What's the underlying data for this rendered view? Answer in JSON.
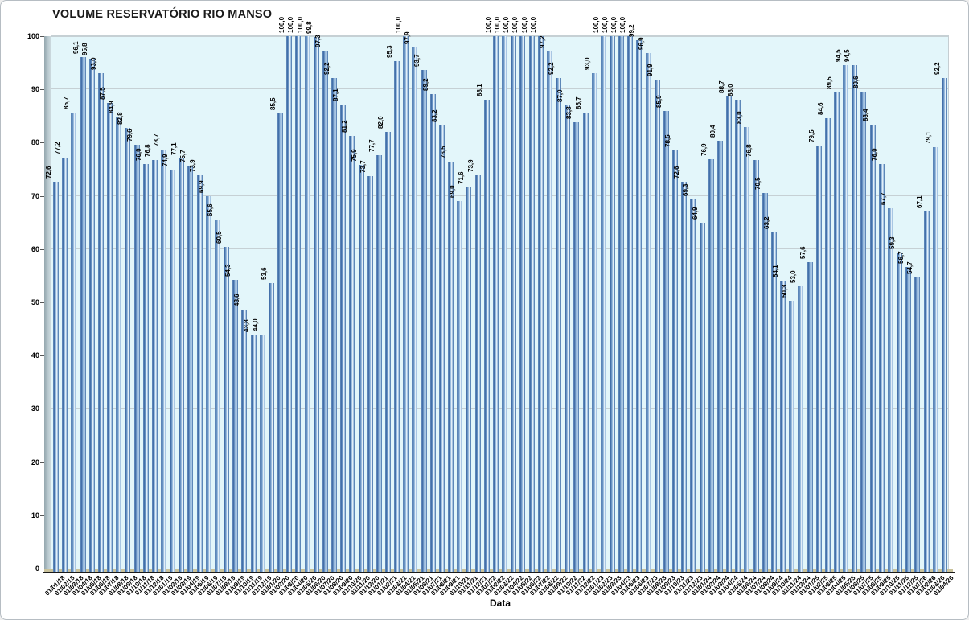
{
  "chart_data": {
    "type": "bar",
    "title": "VOLUME RESERVATÓRIO RIO MANSO",
    "xlabel": "Data",
    "ylabel": "",
    "ylim": [
      0,
      100
    ],
    "y_ticks": [
      0,
      10,
      20,
      30,
      40,
      50,
      60,
      70,
      80,
      90,
      100
    ],
    "grid": true,
    "legend": false,
    "decimal_separator": ",",
    "colors": {
      "plot_background": "#e3f6fa",
      "bar_main": "#4a77b0",
      "bar_highlight": "#f0f7fc",
      "gridline": "#c6d0d4",
      "floor": "#c9c29b",
      "axis_line": "#1b1b1b"
    },
    "categories": [
      "01/01/18",
      "01/02/18",
      "01/03/18",
      "01/04/18",
      "01/05/18",
      "01/06/18",
      "01/07/18",
      "01/08/18",
      "01/09/18",
      "01/10/18",
      "01/11/18",
      "01/12/18",
      "01/01/19",
      "01/02/19",
      "01/03/19",
      "01/04/19",
      "01/05/19",
      "01/06/19",
      "01/07/19",
      "01/08/19",
      "01/09/19",
      "01/10/19",
      "01/11/19",
      "01/12/19",
      "01/01/20",
      "01/02/20",
      "01/03/20",
      "01/04/20",
      "01/05/20",
      "01/06/20",
      "01/07/20",
      "01/08/20",
      "01/09/20",
      "01/10/20",
      "01/11/20",
      "01/12/20",
      "01/01/21",
      "01/02/21",
      "01/03/21",
      "01/04/21",
      "01/05/21",
      "01/06/21",
      "01/07/21",
      "01/08/21",
      "01/09/21",
      "01/10/21",
      "01/11/21",
      "01/12/21",
      "01/01/22",
      "01/02/22",
      "01/03/22",
      "01/04/22",
      "01/05/22",
      "01/06/22",
      "01/07/22",
      "01/08/22",
      "01/09/22",
      "01/10/22",
      "01/11/22",
      "01/12/22",
      "01/01/23",
      "01/02/23",
      "01/03/23",
      "01/04/23",
      "01/05/23",
      "01/06/23",
      "01/07/23",
      "01/08/23",
      "01/09/23",
      "01/10/23",
      "01/11/23",
      "01/12/23",
      "01/01/24",
      "01/02/24",
      "01/03/24",
      "01/04/24",
      "01/05/24",
      "01/06/24",
      "01/07/24",
      "01/08/24",
      "01/09/24",
      "01/10/24",
      "01/11/24",
      "01/12/24",
      "01/01/25",
      "01/02/25",
      "01/03/25",
      "01/04/25",
      "01/05/25",
      "01/06/25",
      "01/07/25",
      "01/08/25",
      "01/09/25",
      "01/10/25",
      "01/11/25",
      "01/12/25",
      "01/01/26",
      "01/02/26",
      "01/03/26",
      "01/04/26"
    ],
    "values": [
      72.6,
      77.2,
      85.7,
      96.1,
      95.8,
      93.0,
      87.5,
      84.9,
      82.8,
      79.6,
      76.0,
      76.8,
      78.7,
      74.9,
      77.1,
      75.7,
      73.9,
      69.9,
      65.6,
      60.5,
      54.3,
      48.6,
      43.8,
      44.0,
      53.6,
      85.5,
      100.0,
      100.0,
      100.0,
      99.8,
      97.3,
      92.2,
      87.1,
      81.2,
      75.9,
      73.7,
      77.7,
      82.0,
      95.3,
      100.0,
      97.9,
      93.7,
      89.2,
      83.2,
      76.5,
      69.0,
      71.6,
      73.9,
      88.1,
      100.0,
      100.0,
      100.0,
      100.0,
      100.0,
      100.0,
      97.2,
      92.2,
      87.0,
      83.8,
      85.7,
      93.0,
      100.0,
      100.0,
      100.0,
      100.0,
      99.2,
      96.9,
      91.9,
      85.9,
      78.5,
      72.6,
      69.3,
      64.9,
      76.9,
      80.4,
      88.7,
      88.0,
      83.0,
      76.8,
      70.5,
      63.2,
      54.1,
      50.3,
      53.0,
      57.6,
      79.5,
      84.6,
      89.5,
      94.5,
      94.5,
      89.6,
      83.4,
      76.0,
      67.7,
      59.3,
      56.7,
      54.7,
      67.1,
      79.1,
      92.2
    ],
    "point_labels": [
      "72,6",
      "77,2",
      "85,7",
      "96,1",
      "95,8",
      "93,0",
      "87,5",
      "84,9",
      "82,8",
      "79,6",
      "76,0",
      "76,8",
      "78,7",
      "74,9",
      "77,1",
      "75,7",
      "73,9",
      "69,9",
      "65,6",
      "60,5",
      "54,3",
      "48,6",
      "43,8",
      "44,0",
      "53,6",
      "85,5",
      "100,0",
      "100,0",
      "100,0",
      "99,8",
      "97,3",
      "92,2",
      "87,1",
      "81,2",
      "75,9",
      "73,7",
      "77,7",
      "82,0",
      "95,3",
      "100,0",
      "97,9",
      "93,7",
      "89,2",
      "83,2",
      "76,5",
      "69,0",
      "71,6",
      "73,9",
      "88,1",
      "100,0",
      "100,0",
      "100,0",
      "100,0",
      "100,0",
      "100,0",
      "97,2",
      "92,2",
      "87,0",
      "83,8",
      "85,7",
      "93,0",
      "100,0",
      "100,0",
      "100,0",
      "100,0",
      "99,2",
      "96,9",
      "91,9",
      "85,9",
      "78,5",
      "72,6",
      "69,3",
      "64,9",
      "76,9",
      "80,4",
      "88,7",
      "88,0",
      "83,0",
      "76,8",
      "70,5",
      "63,2",
      "54,1",
      "50,3",
      "53,0",
      "57,6",
      "79,5",
      "84,6",
      "89,5",
      "94,5",
      "94,5",
      "89,6",
      "83,4",
      "76,0",
      "67,7",
      "59,3",
      "56,7",
      "54,7",
      "67,1",
      "79,1",
      "92,2"
    ]
  }
}
